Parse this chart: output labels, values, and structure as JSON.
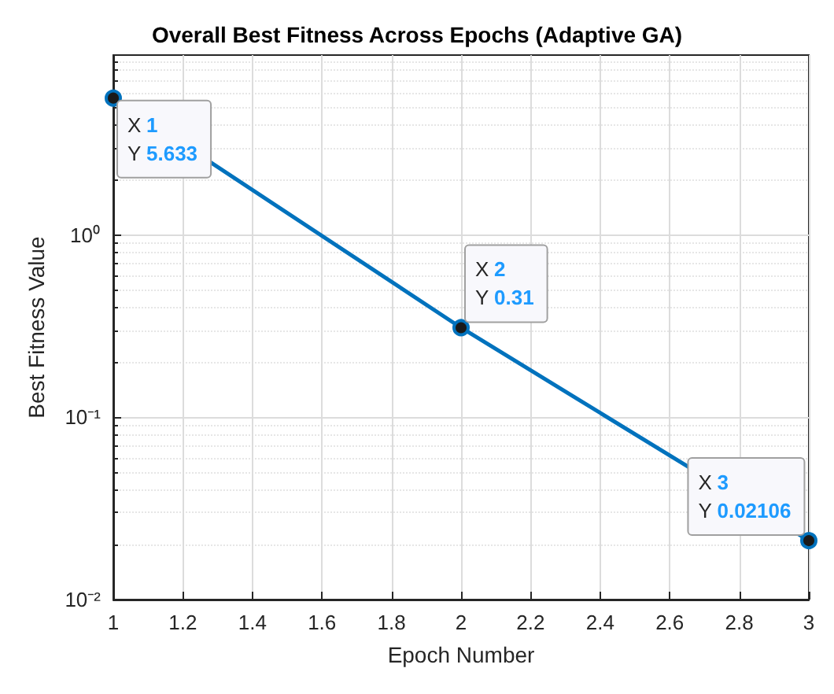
{
  "chart_data": {
    "type": "line",
    "title": "Overall Best Fitness Across Epochs (Adaptive GA)",
    "xlabel": "Epoch Number",
    "ylabel": "Best Fitness Value",
    "x": [
      1,
      2,
      3
    ],
    "series": [
      {
        "color": "#0072bd",
        "values": [
          5.633,
          0.31,
          0.02106
        ]
      }
    ],
    "log": "y",
    "xlim": [
      1,
      3
    ],
    "xticks": [
      1,
      1.2,
      1.4,
      1.6,
      1.8,
      2,
      2.2,
      2.4,
      2.6,
      2.8,
      3
    ],
    "ylim": [
      0.01,
      9.7
    ],
    "yticks": [
      {
        "value": 0.01,
        "label": "10⁻²"
      },
      {
        "value": 0.1,
        "label": "10⁻¹"
      },
      {
        "value": 1,
        "label": "10⁰"
      }
    ],
    "grid": true,
    "marker": "circle",
    "line_style": "solid",
    "annotations": [
      {
        "text": "X 1\nY 5.633",
        "x": 1,
        "y": 5.633
      },
      {
        "text": "X 2\nY 0.31",
        "x": 2,
        "y": 0.31
      },
      {
        "text": "X 3\nY 0.02106",
        "x": 3,
        "y": 0.02106
      }
    ]
  }
}
